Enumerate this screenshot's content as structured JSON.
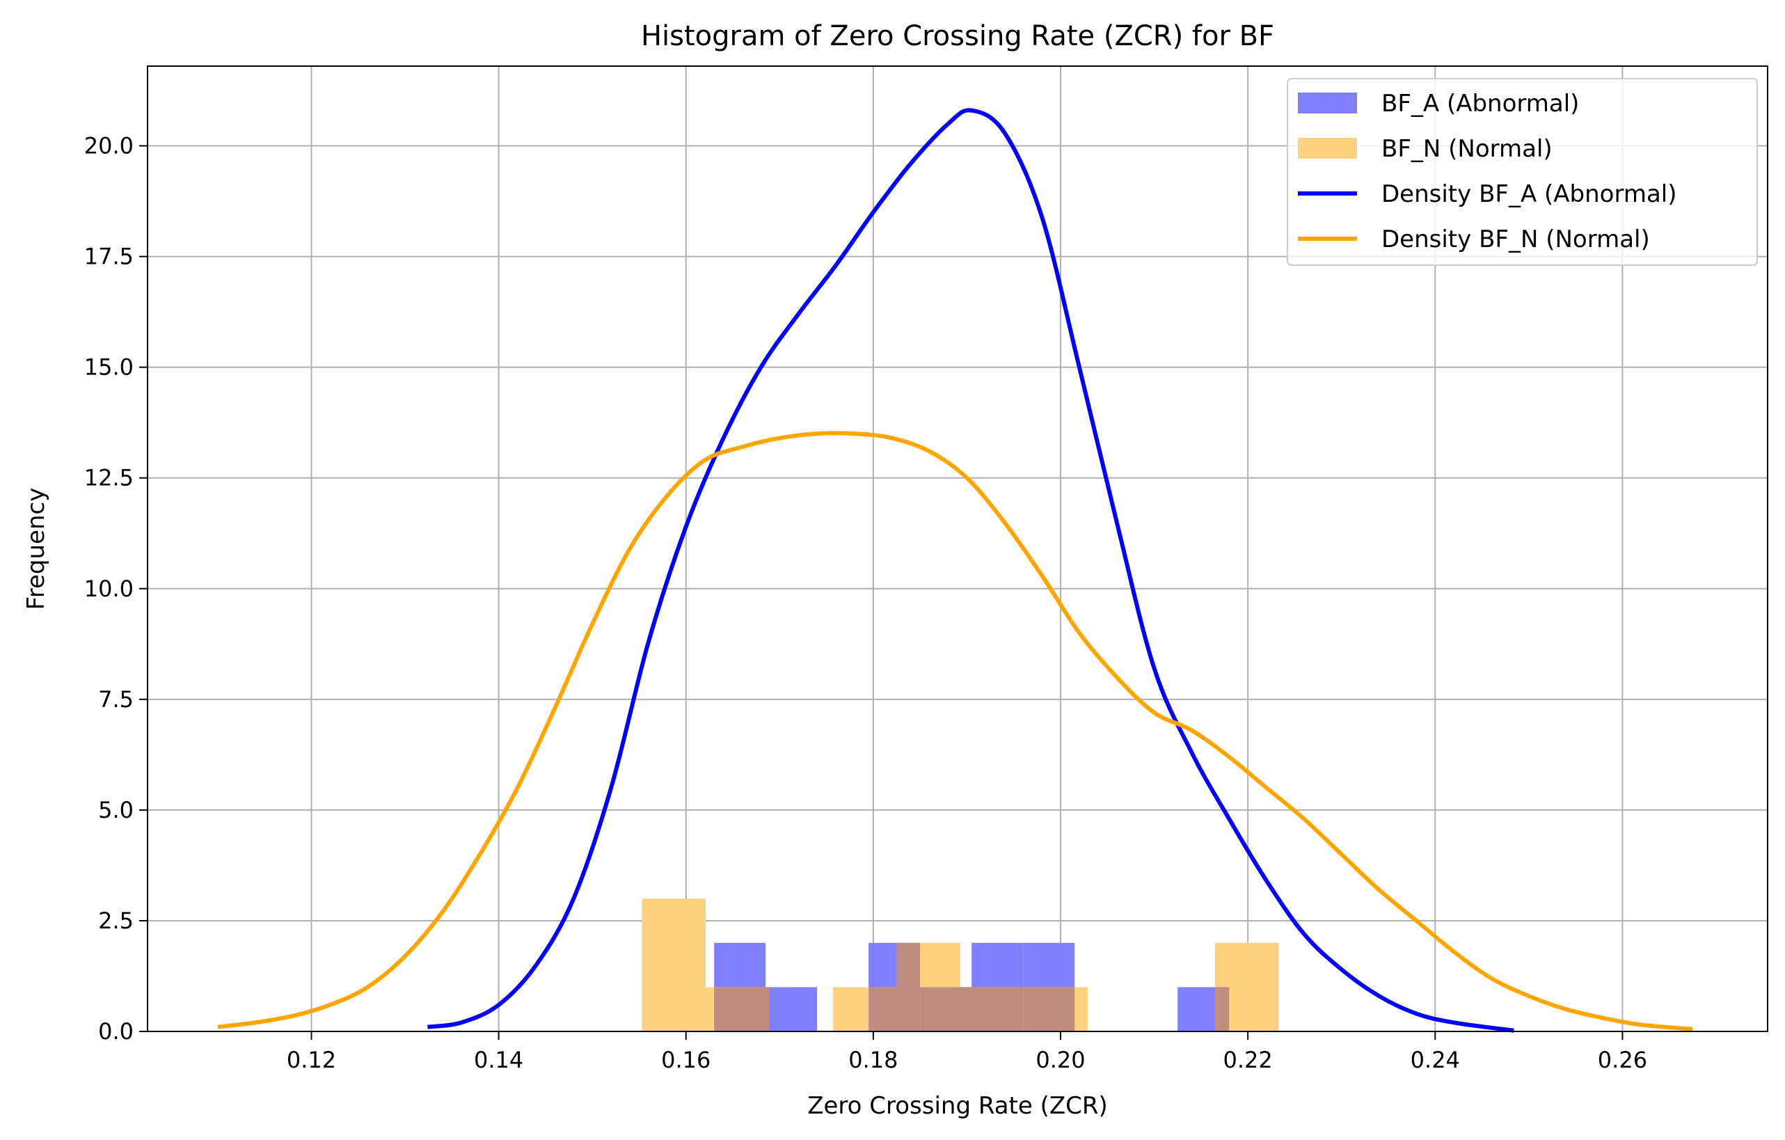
{
  "chart_data": {
    "type": "bar",
    "title": "Histogram of Zero Crossing Rate (ZCR) for BF",
    "xlabel": "Zero Crossing Rate (ZCR)",
    "ylabel": "Frequency",
    "xlim": [
      0.1025,
      0.2755
    ],
    "ylim": [
      0.0,
      21.8
    ],
    "xticks": [
      0.12,
      0.14,
      0.16,
      0.18,
      0.2,
      0.22,
      0.24,
      0.26
    ],
    "xtick_labels": [
      "0.12",
      "0.14",
      "0.16",
      "0.18",
      "0.20",
      "0.22",
      "0.24",
      "0.26"
    ],
    "yticks": [
      0.0,
      2.5,
      5.0,
      7.5,
      10.0,
      12.5,
      15.0,
      17.5,
      20.0
    ],
    "ytick_labels": [
      "0.0",
      "2.5",
      "5.0",
      "7.5",
      "10.0",
      "12.5",
      "15.0",
      "17.5",
      "20.0"
    ],
    "grid": true,
    "legend_position": "top-right",
    "histograms": [
      {
        "name": "BF_A (Abnormal)",
        "color": "#8080ff",
        "bins": [
          {
            "x0": 0.163,
            "x1": 0.1685,
            "count": 2
          },
          {
            "x0": 0.1685,
            "x1": 0.174,
            "count": 1
          },
          {
            "x0": 0.1795,
            "x1": 0.185,
            "count": 2
          },
          {
            "x0": 0.185,
            "x1": 0.1905,
            "count": 1
          },
          {
            "x0": 0.1905,
            "x1": 0.196,
            "count": 2
          },
          {
            "x0": 0.196,
            "x1": 0.2015,
            "count": 2
          },
          {
            "x0": 0.2125,
            "x1": 0.218,
            "count": 1
          }
        ]
      },
      {
        "name": "BF_N (Normal)",
        "color": "#ffd280",
        "bins": [
          {
            "x0": 0.1553,
            "x1": 0.1621,
            "count": 3
          },
          {
            "x0": 0.1621,
            "x1": 0.1689,
            "count": 1
          },
          {
            "x0": 0.1757,
            "x1": 0.1825,
            "count": 1
          },
          {
            "x0": 0.1825,
            "x1": 0.1893,
            "count": 2
          },
          {
            "x0": 0.1893,
            "x1": 0.1961,
            "count": 1
          },
          {
            "x0": 0.1961,
            "x1": 0.2029,
            "count": 1
          },
          {
            "x0": 0.2165,
            "x1": 0.2233,
            "count": 2
          }
        ]
      }
    ],
    "overlap_color": "#bf8c80",
    "series": [
      {
        "name": "Density BF_A (Abnormal)",
        "color": "#0000ff",
        "x": [
          0.1324,
          0.136,
          0.14,
          0.144,
          0.148,
          0.152,
          0.156,
          0.16,
          0.164,
          0.168,
          0.172,
          0.176,
          0.18,
          0.184,
          0.188,
          0.1905,
          0.194,
          0.198,
          0.202,
          0.206,
          0.21,
          0.214,
          0.218,
          0.222,
          0.226,
          0.23,
          0.234,
          0.238,
          0.242,
          0.2484
        ],
        "y": [
          0.1,
          0.2,
          0.6,
          1.5,
          3.0,
          5.5,
          8.8,
          11.4,
          13.4,
          15.0,
          16.2,
          17.3,
          18.5,
          19.6,
          20.5,
          20.8,
          20.3,
          18.4,
          15.0,
          11.5,
          8.2,
          6.3,
          4.8,
          3.4,
          2.2,
          1.4,
          0.8,
          0.4,
          0.2,
          0.02
        ]
      },
      {
        "name": "Density BF_N (Normal)",
        "color": "#ffa500",
        "x": [
          0.11,
          0.114,
          0.118,
          0.122,
          0.126,
          0.13,
          0.134,
          0.138,
          0.142,
          0.146,
          0.15,
          0.154,
          0.158,
          0.162,
          0.166,
          0.17,
          0.174,
          0.178,
          0.182,
          0.186,
          0.19,
          0.194,
          0.198,
          0.202,
          0.206,
          0.21,
          0.214,
          0.218,
          0.222,
          0.226,
          0.23,
          0.234,
          0.238,
          0.242,
          0.246,
          0.25,
          0.254,
          0.258,
          0.262,
          0.2675
        ],
        "y": [
          0.1,
          0.2,
          0.35,
          0.6,
          1.0,
          1.7,
          2.7,
          4.0,
          5.5,
          7.3,
          9.2,
          10.9,
          12.1,
          12.9,
          13.2,
          13.4,
          13.5,
          13.5,
          13.4,
          13.1,
          12.5,
          11.5,
          10.3,
          9.0,
          8.0,
          7.2,
          6.8,
          6.2,
          5.5,
          4.8,
          4.0,
          3.2,
          2.5,
          1.8,
          1.2,
          0.8,
          0.5,
          0.3,
          0.15,
          0.05
        ]
      }
    ],
    "legend": [
      {
        "label": "BF_A (Abnormal)",
        "kind": "patch",
        "color": "#8080ff"
      },
      {
        "label": "BF_N (Normal)",
        "kind": "patch",
        "color": "#ffd280"
      },
      {
        "label": "Density BF_A (Abnormal)",
        "kind": "line",
        "color": "#0000ff"
      },
      {
        "label": "Density BF_N (Normal)",
        "kind": "line",
        "color": "#ffa500"
      }
    ]
  }
}
